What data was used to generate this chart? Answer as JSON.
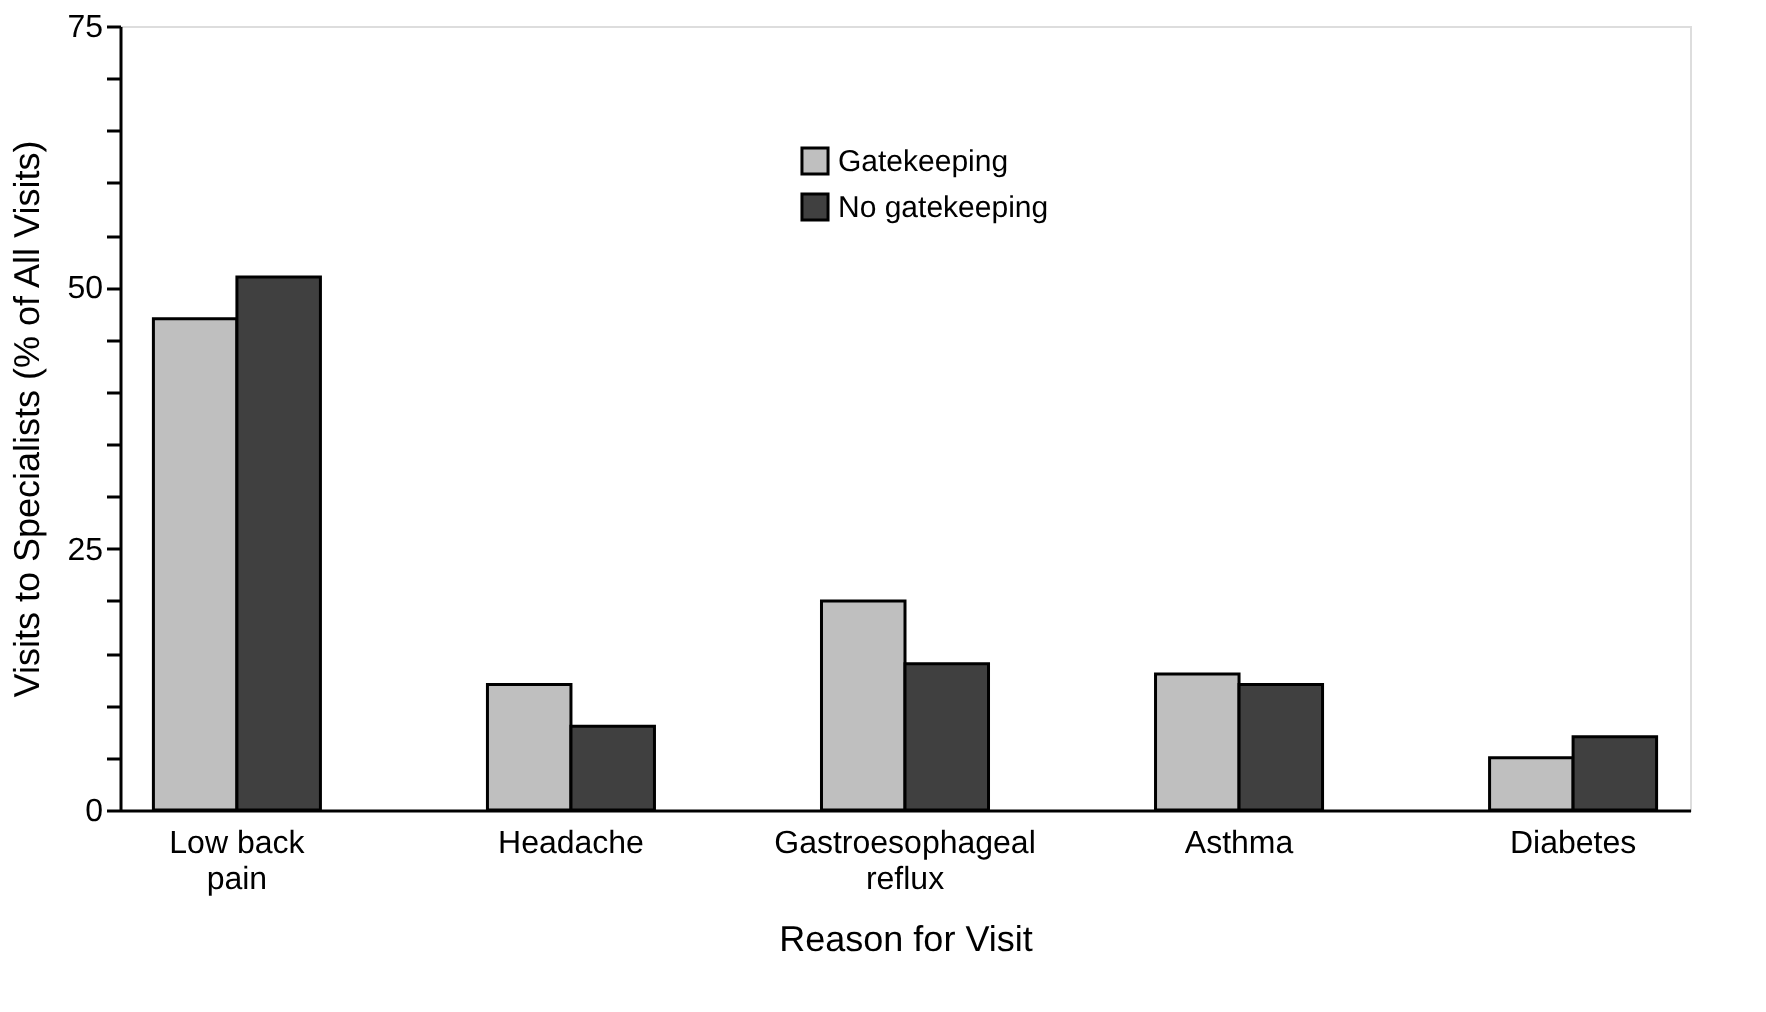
{
  "chart_data": {
    "type": "bar",
    "xlabel": "Reason for Visit",
    "ylabel": "Visits to Specialists (% of All Visits)",
    "categories": [
      "Low back pain",
      "Headache",
      "Gastroesophageal reflux",
      "Asthma",
      "Diabetes"
    ],
    "series": [
      {
        "name": "Gatekeeping",
        "color": "#bfbfbf",
        "values": [
          47,
          12,
          20,
          13,
          5
        ]
      },
      {
        "name": "No gatekeeping",
        "color": "#404040",
        "values": [
          51,
          8,
          14,
          12,
          7
        ]
      }
    ],
    "ylim": [
      0,
      75
    ],
    "yticks": [
      0,
      {
        "value": 5,
        "label": null
      },
      {
        "value": 10,
        "label": null
      },
      {
        "value": 15,
        "label": null
      },
      {
        "value": 20,
        "label": null
      },
      25,
      {
        "value": 30,
        "label": null
      },
      {
        "value": 35,
        "label": null
      },
      {
        "value": 40,
        "label": null
      },
      {
        "value": 45,
        "label": null
      },
      50,
      {
        "value": 55,
        "label": null
      },
      {
        "value": 60,
        "label": null
      },
      {
        "value": 65,
        "label": null
      },
      {
        "value": 70,
        "label": null
      },
      75
    ],
    "grid": false,
    "legend": "top"
  }
}
